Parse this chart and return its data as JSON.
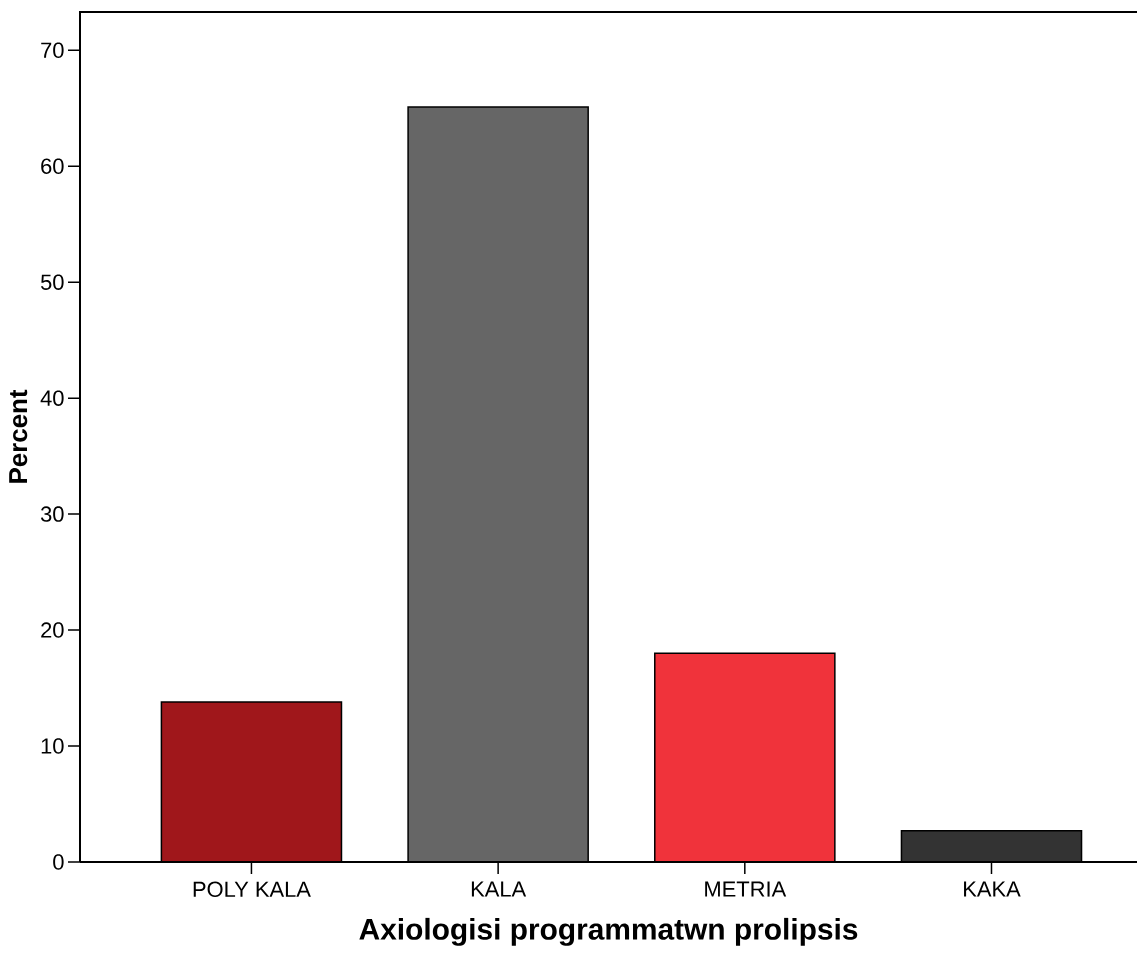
{
  "chart_data": {
    "type": "bar",
    "xlabel": "Axiologisi programmatwn prolipsis",
    "ylabel": "Percent",
    "categories": [
      "POLY KALA",
      "KALA",
      "METRIA",
      "KAKA"
    ],
    "values": [
      13.8,
      65.1,
      18.0,
      2.7
    ],
    "colors": [
      "#a0171b",
      "#666666",
      "#f0333b",
      "#333333"
    ],
    "ylim": [
      0,
      73.3
    ],
    "yticks": [
      0,
      10,
      20,
      30,
      40,
      50,
      60,
      70
    ],
    "grid": false
  }
}
